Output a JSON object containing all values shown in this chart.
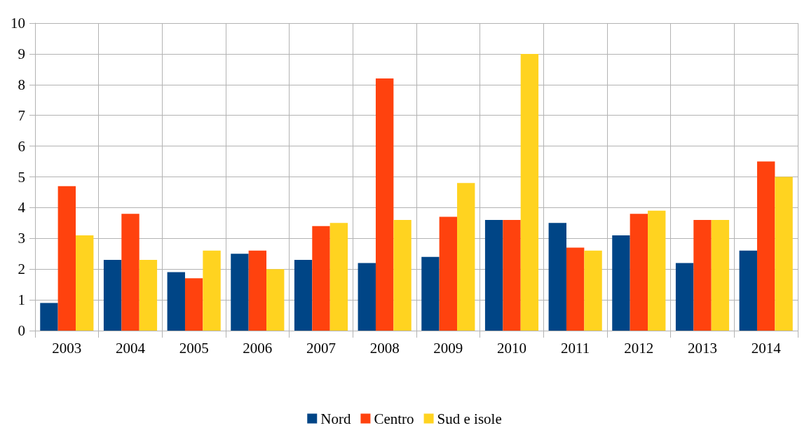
{
  "chart_data": {
    "type": "bar",
    "categories": [
      "2003",
      "2004",
      "2005",
      "2006",
      "2007",
      "2008",
      "2009",
      "2010",
      "2011",
      "2012",
      "2013",
      "2014"
    ],
    "series": [
      {
        "name": "Nord",
        "color": "#004586",
        "values": [
          0.9,
          2.3,
          1.9,
          2.5,
          2.3,
          2.2,
          2.4,
          3.6,
          3.5,
          3.1,
          2.2,
          2.6
        ]
      },
      {
        "name": "Centro",
        "color": "#ff420e",
        "values": [
          4.7,
          3.8,
          1.7,
          2.6,
          3.4,
          8.2,
          3.7,
          3.6,
          2.7,
          3.8,
          3.6,
          5.5
        ]
      },
      {
        "name": "Sud e isole",
        "color": "#ffd320",
        "values": [
          3.1,
          2.3,
          2.6,
          2.0,
          3.5,
          3.6,
          4.8,
          9.0,
          2.6,
          3.9,
          3.6,
          5.0
        ]
      }
    ],
    "ylim": [
      0,
      10
    ],
    "yticks": [
      0,
      1,
      2,
      3,
      4,
      5,
      6,
      7,
      8,
      9,
      10
    ],
    "grid": true,
    "legend": "bottom"
  }
}
